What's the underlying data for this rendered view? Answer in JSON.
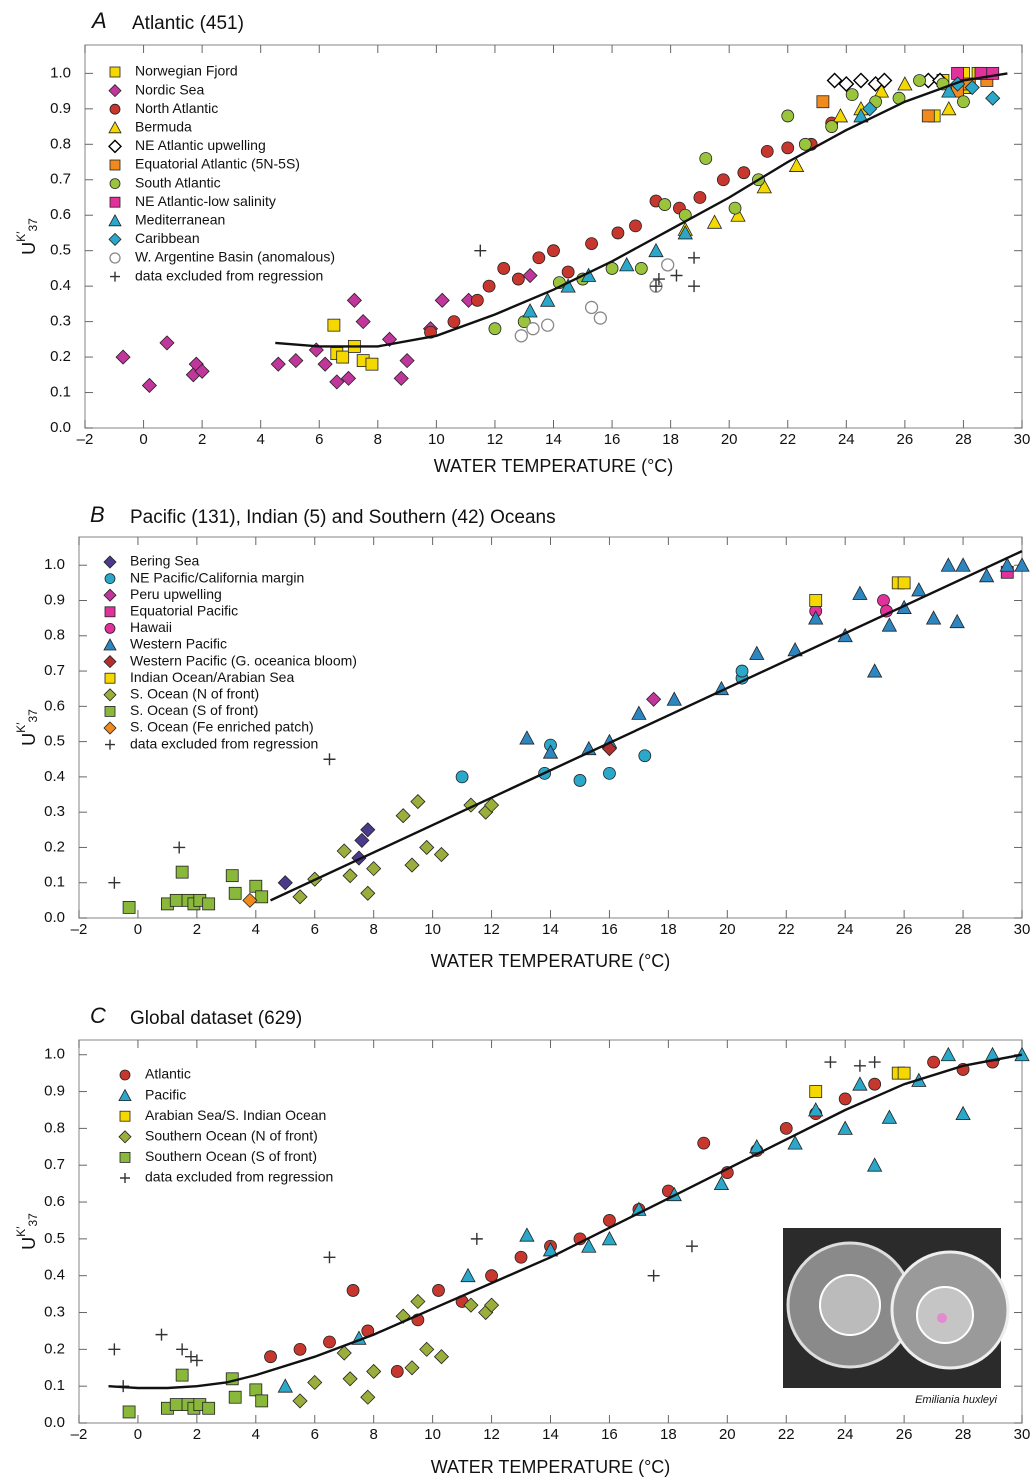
{
  "chart_data": [
    {
      "type": "scatter",
      "panel_label": "A",
      "title": "Atlantic (451)",
      "x_label": "WATER TEMPERATURE (°C)",
      "y_label": {
        "base": "U",
        "sup": "K′",
        "sub": "37"
      },
      "xlim": [
        -2,
        30
      ],
      "ylim": [
        0,
        1.08
      ],
      "xticks": [
        {
          "value": -2,
          "label": "–2"
        },
        0,
        2,
        4,
        6,
        8,
        10,
        12,
        14,
        16,
        18,
        20,
        22,
        24,
        26,
        28,
        30
      ],
      "yticks": [
        {
          "value": 0,
          "label": "0.0"
        },
        0.1,
        0.2,
        0.3,
        0.4,
        0.5,
        0.6,
        0.7,
        0.8,
        0.9,
        {
          "value": 1,
          "label": "1.0"
        }
      ],
      "series": [
        {
          "name": "Norwegian Fjord",
          "color": "#f5d800",
          "marker": "square",
          "x": [
            6.5,
            6.6,
            6.8,
            7.2,
            7.5,
            7.8,
            27,
            27.3,
            28,
            28.5
          ],
          "values": [
            0.29,
            0.21,
            0.2,
            0.23,
            0.19,
            0.18,
            0.88,
            0.98,
            1.0,
            1.0
          ]
        },
        {
          "name": "Nordic Sea",
          "color": "#c0369a",
          "marker": "diamond",
          "x": [
            -0.7,
            0.2,
            0.8,
            1.7,
            1.8,
            2.0,
            4.6,
            5.2,
            5.9,
            6.2,
            6.6,
            7.0,
            7.2,
            7.5,
            8.4,
            8.8,
            9.0,
            9.8,
            10.2,
            11.1,
            13.2
          ],
          "values": [
            0.2,
            0.12,
            0.24,
            0.15,
            0.18,
            0.16,
            0.18,
            0.19,
            0.22,
            0.18,
            0.13,
            0.14,
            0.36,
            0.3,
            0.25,
            0.14,
            0.19,
            0.28,
            0.36,
            0.36,
            0.43
          ]
        },
        {
          "name": "North Atlantic",
          "color": "#c8372d",
          "marker": "circle",
          "x": [
            9.8,
            10.6,
            11.4,
            11.8,
            12.3,
            12.8,
            13.5,
            14.0,
            14.5,
            15.3,
            16.2,
            16.8,
            17.5,
            18.3,
            19.0,
            19.8,
            20.5,
            21.3,
            22.0,
            22.8,
            23.5
          ],
          "values": [
            0.27,
            0.3,
            0.36,
            0.4,
            0.45,
            0.42,
            0.48,
            0.5,
            0.44,
            0.52,
            0.55,
            0.57,
            0.64,
            0.62,
            0.65,
            0.7,
            0.72,
            0.78,
            0.79,
            0.8,
            0.86
          ]
        },
        {
          "name": "Bermuda",
          "color": "#f5d800",
          "marker": "triangle",
          "x": [
            18.5,
            19.5,
            20.3,
            21.2,
            22.3,
            23.8,
            24.5,
            25.2,
            26.0,
            27.5,
            28.0
          ],
          "values": [
            0.56,
            0.58,
            0.6,
            0.68,
            0.74,
            0.88,
            0.9,
            0.95,
            0.97,
            0.9,
            0.96
          ]
        },
        {
          "name": "NE Atlantic upwelling",
          "color": "#000000",
          "marker": "open-diamond",
          "x": [
            23.6,
            24.0,
            24.5,
            25.0,
            25.3,
            26.8,
            27.2
          ],
          "values": [
            0.98,
            0.97,
            0.98,
            0.97,
            0.98,
            0.98,
            0.98
          ]
        },
        {
          "name": "Equatorial Atlantic (5N-5S)",
          "color": "#f08a1c",
          "marker": "square",
          "x": [
            23.2,
            26.8,
            27.8,
            28.2,
            28.8
          ],
          "values": [
            0.92,
            0.88,
            0.95,
            0.97,
            0.98
          ]
        },
        {
          "name": "South Atlantic",
          "color": "#9ac43c",
          "marker": "circle",
          "x": [
            12.0,
            13.0,
            14.2,
            15.0,
            16.0,
            17.0,
            17.8,
            18.5,
            19.2,
            20.2,
            21.0,
            22.0,
            22.6,
            23.5,
            24.2,
            25.0,
            25.8,
            26.5,
            27.3,
            28.0
          ],
          "values": [
            0.28,
            0.3,
            0.41,
            0.42,
            0.45,
            0.45,
            0.63,
            0.6,
            0.76,
            0.62,
            0.7,
            0.88,
            0.8,
            0.85,
            0.94,
            0.92,
            0.93,
            0.98,
            0.97,
            0.92
          ]
        },
        {
          "name": "NE Atlantic-low salinity",
          "color": "#e0329a",
          "marker": "square",
          "x": [
            27.8,
            28.6,
            29.0
          ],
          "values": [
            1.0,
            1.0,
            1.0
          ]
        },
        {
          "name": "Mediterranean",
          "color": "#2aa7c9",
          "marker": "triangle",
          "x": [
            13.2,
            13.8,
            14.5,
            15.2,
            16.5,
            17.5,
            18.5,
            24.5,
            27.5
          ],
          "values": [
            0.33,
            0.36,
            0.4,
            0.43,
            0.46,
            0.5,
            0.55,
            0.88,
            0.95
          ]
        },
        {
          "name": "Caribbean",
          "color": "#2aa7c9",
          "marker": "diamond",
          "x": [
            24.8,
            27.8,
            28.3,
            29.0
          ],
          "values": [
            0.9,
            0.97,
            0.96,
            0.93
          ]
        },
        {
          "name": "W. Argentine Basin (anomalous)",
          "color": "#888888",
          "marker": "open-circle",
          "x": [
            12.9,
            13.3,
            13.8,
            15.3,
            15.6,
            17.5,
            17.9
          ],
          "values": [
            0.26,
            0.28,
            0.29,
            0.34,
            0.31,
            0.4,
            0.46
          ]
        },
        {
          "name": "data excluded from regression",
          "color": "#333333",
          "marker": "plus",
          "x": [
            11.5,
            17.5,
            18.2,
            18.8,
            17.6,
            18.8
          ],
          "values": [
            0.5,
            0.4,
            0.43,
            0.48,
            0.42,
            0.4
          ]
        }
      ],
      "regression": {
        "x": [
          4.5,
          6,
          8,
          10,
          12,
          14,
          16,
          18,
          20,
          22,
          24,
          26,
          28,
          29.5
        ],
        "values": [
          0.24,
          0.23,
          0.23,
          0.26,
          0.32,
          0.39,
          0.47,
          0.56,
          0.65,
          0.75,
          0.84,
          0.92,
          0.98,
          1.0
        ]
      }
    },
    {
      "type": "scatter",
      "panel_label": "B",
      "title": "Pacific (131), Indian (5) and Southern (42) Oceans",
      "x_label": "WATER TEMPERATURE (°C)",
      "y_label": {
        "base": "U",
        "sup": "K′",
        "sub": "37"
      },
      "xlim": [
        -2,
        30
      ],
      "ylim": [
        0,
        1.08
      ],
      "xticks": [
        {
          "value": -2,
          "label": "–2"
        },
        0,
        2,
        4,
        6,
        8,
        10,
        12,
        14,
        16,
        18,
        20,
        22,
        24,
        26,
        28,
        30
      ],
      "yticks": [
        {
          "value": 0,
          "label": "0.0"
        },
        0.1,
        0.2,
        0.3,
        0.4,
        0.5,
        0.6,
        0.7,
        0.8,
        0.9,
        {
          "value": 1,
          "label": "1.0"
        }
      ],
      "series": [
        {
          "name": "Bering Sea",
          "color": "#4b3a8c",
          "marker": "diamond",
          "x": [
            5.0,
            7.8,
            7.6,
            7.5
          ],
          "values": [
            0.1,
            0.25,
            0.22,
            0.17
          ]
        },
        {
          "name": "NE Pacific/California margin",
          "color": "#2aa7c9",
          "marker": "circle",
          "x": [
            11.0,
            13.8,
            14.0,
            15.0,
            16.0,
            17.2,
            20.5,
            20.5
          ],
          "values": [
            0.4,
            0.41,
            0.49,
            0.39,
            0.41,
            0.46,
            0.68,
            0.7
          ]
        },
        {
          "name": "Peru upwelling",
          "color": "#c0369a",
          "marker": "diamond",
          "x": [
            17.5
          ],
          "values": [
            0.62
          ]
        },
        {
          "name": "Equatorial Pacific",
          "color": "#e0329a",
          "marker": "square",
          "x": [
            29.5
          ],
          "values": [
            0.98
          ]
        },
        {
          "name": "Hawaii",
          "color": "#e0329a",
          "marker": "circle",
          "x": [
            23.0,
            25.3,
            25.4
          ],
          "values": [
            0.87,
            0.9,
            0.87
          ]
        },
        {
          "name": "Western Pacific",
          "color": "#2e86c1",
          "marker": "triangle",
          "x": [
            13.2,
            14.0,
            15.3,
            16.0,
            17.0,
            18.2,
            19.8,
            21.0,
            22.3,
            23.0,
            24.0,
            24.5,
            25.0,
            25.5,
            26.0,
            26.5,
            27.0,
            27.5,
            28.0,
            28.8,
            29.5,
            30.0,
            27.8
          ],
          "values": [
            0.51,
            0.47,
            0.48,
            0.5,
            0.58,
            0.62,
            0.65,
            0.75,
            0.76,
            0.85,
            0.8,
            0.92,
            0.7,
            0.83,
            0.88,
            0.93,
            0.85,
            1.0,
            1.0,
            0.97,
            1.0,
            1.0,
            0.84
          ]
        },
        {
          "name": "Western Pacific (G. oceanica bloom)",
          "color": "#b03030",
          "marker": "diamond",
          "x": [
            16.0
          ],
          "values": [
            0.48
          ]
        },
        {
          "name": "Indian Ocean/Arabian Sea",
          "color": "#f5d800",
          "marker": "square",
          "x": [
            23.0,
            25.8,
            26.0
          ],
          "values": [
            0.9,
            0.95,
            0.95
          ]
        },
        {
          "name": "S. Ocean (N of front)",
          "color": "#9aae3c",
          "marker": "diamond",
          "x": [
            5.5,
            6.0,
            7.0,
            7.2,
            7.8,
            8.0,
            9.0,
            9.3,
            9.5,
            9.8,
            10.3,
            11.3,
            11.8,
            12.0
          ],
          "values": [
            0.06,
            0.11,
            0.19,
            0.12,
            0.07,
            0.14,
            0.29,
            0.15,
            0.33,
            0.2,
            0.18,
            0.32,
            0.3,
            0.32
          ]
        },
        {
          "name": "S. Ocean (S of front)",
          "color": "#8ab83a",
          "marker": "square",
          "x": [
            -0.3,
            1.0,
            1.3,
            1.5,
            1.7,
            1.9,
            2.1,
            2.4,
            3.2,
            3.3,
            4.0,
            4.2
          ],
          "values": [
            0.03,
            0.04,
            0.05,
            0.13,
            0.05,
            0.04,
            0.05,
            0.04,
            0.12,
            0.07,
            0.09,
            0.06
          ]
        },
        {
          "name": "S. Ocean (Fe enriched patch)",
          "color": "#f08a1c",
          "marker": "diamond",
          "x": [
            3.8
          ],
          "values": [
            0.05
          ]
        },
        {
          "name": "data excluded from regression",
          "color": "#333333",
          "marker": "plus",
          "x": [
            -0.8,
            1.4,
            6.5
          ],
          "values": [
            0.1,
            0.2,
            0.45
          ]
        }
      ],
      "regression": {
        "x": [
          4.5,
          30
        ],
        "values": [
          0.05,
          1.04
        ]
      }
    },
    {
      "type": "scatter",
      "panel_label": "C",
      "title": "Global dataset (629)",
      "x_label": "WATER TEMPERATURE (°C)",
      "y_label": {
        "base": "U",
        "sup": "K′",
        "sub": "37"
      },
      "xlim": [
        -2,
        30
      ],
      "ylim": [
        0,
        1.04
      ],
      "xticks": [
        {
          "value": -2,
          "label": "–2"
        },
        0,
        2,
        4,
        6,
        8,
        10,
        12,
        14,
        16,
        18,
        20,
        22,
        24,
        26,
        28,
        30
      ],
      "yticks": [
        {
          "value": 0,
          "label": "0.0"
        },
        0.1,
        0.2,
        0.3,
        0.4,
        0.5,
        0.6,
        0.7,
        0.8,
        0.9,
        {
          "value": 1,
          "label": "1.0"
        }
      ],
      "series": [
        {
          "name": "Atlantic",
          "color": "#c8372d",
          "marker": "circle",
          "x": [
            4.5,
            5.5,
            6.5,
            7.3,
            7.8,
            8.8,
            9.5,
            10.2,
            11.0,
            12.0,
            13.0,
            14.0,
            15.0,
            16.0,
            17.0,
            18.0,
            19.2,
            20.0,
            21.0,
            22.0,
            23.0,
            24.0,
            25.0,
            26.0,
            27.0,
            28.0,
            29.0
          ],
          "values": [
            0.18,
            0.2,
            0.22,
            0.36,
            0.25,
            0.14,
            0.28,
            0.36,
            0.33,
            0.4,
            0.45,
            0.48,
            0.5,
            0.55,
            0.58,
            0.63,
            0.76,
            0.68,
            0.74,
            0.8,
            0.84,
            0.88,
            0.92,
            0.95,
            0.98,
            0.96,
            0.98
          ]
        },
        {
          "name": "Pacific",
          "color": "#2aa7c9",
          "marker": "triangle",
          "x": [
            5.0,
            7.5,
            11.2,
            13.2,
            14.0,
            15.3,
            16.0,
            17.0,
            18.2,
            19.8,
            21.0,
            22.3,
            23.0,
            24.0,
            24.5,
            25.0,
            25.5,
            26.5,
            27.5,
            28.0,
            29.0,
            30.0
          ],
          "values": [
            0.1,
            0.23,
            0.4,
            0.51,
            0.47,
            0.48,
            0.5,
            0.58,
            0.62,
            0.65,
            0.75,
            0.76,
            0.85,
            0.8,
            0.92,
            0.7,
            0.83,
            0.93,
            1.0,
            0.84,
            1.0,
            1.0
          ]
        },
        {
          "name": "Arabian Sea/S. Indian Ocean",
          "color": "#f5d800",
          "marker": "square",
          "x": [
            23.0,
            25.8,
            26.0
          ],
          "values": [
            0.9,
            0.95,
            0.95
          ]
        },
        {
          "name": "Southern Ocean (N of front)",
          "color": "#9aae3c",
          "marker": "diamond",
          "x": [
            5.5,
            6.0,
            7.0,
            7.2,
            7.8,
            8.0,
            9.0,
            9.3,
            9.5,
            9.8,
            10.3,
            11.3,
            11.8,
            12.0
          ],
          "values": [
            0.06,
            0.11,
            0.19,
            0.12,
            0.07,
            0.14,
            0.29,
            0.15,
            0.33,
            0.2,
            0.18,
            0.32,
            0.3,
            0.32
          ]
        },
        {
          "name": "Southern Ocean (S of front)",
          "color": "#8ab83a",
          "marker": "square",
          "x": [
            -0.3,
            1.0,
            1.3,
            1.5,
            1.7,
            1.9,
            2.1,
            2.4,
            3.2,
            3.3,
            4.0,
            4.2
          ],
          "values": [
            0.03,
            0.04,
            0.05,
            0.13,
            0.05,
            0.04,
            0.05,
            0.04,
            0.12,
            0.07,
            0.09,
            0.06
          ]
        },
        {
          "name": "data excluded from regression",
          "color": "#333333",
          "marker": "plus",
          "x": [
            -0.8,
            -0.5,
            0.8,
            1.5,
            1.8,
            2.0,
            6.5,
            11.5,
            23.5,
            24.5,
            25.0,
            17.5,
            18.8
          ],
          "values": [
            0.2,
            0.1,
            0.24,
            0.2,
            0.18,
            0.17,
            0.45,
            0.5,
            0.98,
            0.97,
            0.98,
            0.4,
            0.48
          ]
        }
      ],
      "regression": {
        "x": [
          -1,
          0,
          1,
          2,
          3,
          4,
          6,
          8,
          10,
          12,
          14,
          16,
          18,
          20,
          22,
          24,
          26,
          28,
          30
        ],
        "values": [
          0.1,
          0.095,
          0.095,
          0.1,
          0.11,
          0.13,
          0.18,
          0.24,
          0.31,
          0.38,
          0.45,
          0.53,
          0.61,
          0.69,
          0.77,
          0.85,
          0.92,
          0.97,
          1.0
        ]
      },
      "inset_caption": "Emiliania huxleyi"
    }
  ]
}
